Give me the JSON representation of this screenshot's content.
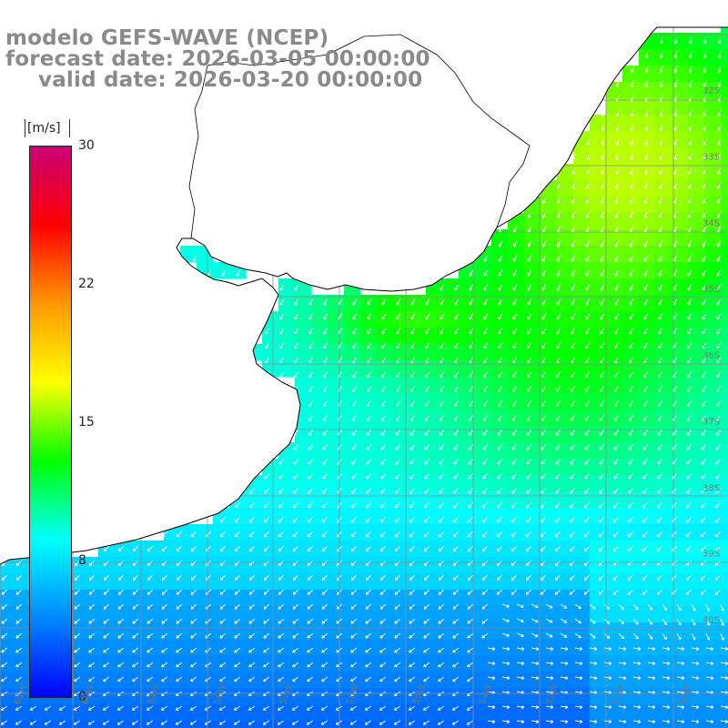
{
  "title": {
    "line1": "modelo GEFS-WAVE (NCEP)",
    "line2": "forecast date: 2026-03-05 00:00:00",
    "line3": "valid date: 2026-03-20 00:00:00"
  },
  "colorbar": {
    "unit": "[m/s]",
    "min": 0,
    "max": 30,
    "ticks": [
      "30",
      "22",
      "15",
      "8",
      "0"
    ],
    "stops": [
      "#0000ff",
      "#0088ff",
      "#00ffff",
      "#00ff00",
      "#ffff00",
      "#ff9900",
      "#ff0000",
      "#cc0077"
    ]
  },
  "map": {
    "variable": "wind speed and direction",
    "lat_labels": [
      "32S",
      "33S",
      "34S",
      "35S",
      "36S",
      "37S",
      "38S",
      "39S",
      "40S"
    ],
    "lon_labels": [
      "61W",
      "60W",
      "59W",
      "58W",
      "57W",
      "56W",
      "55W",
      "54W",
      "53W",
      "52W",
      "51W"
    ],
    "colors": {
      "land": "#ffffff",
      "grid": "#8c8c8c",
      "coast": "#000000",
      "arrow": "#ffffff"
    }
  }
}
